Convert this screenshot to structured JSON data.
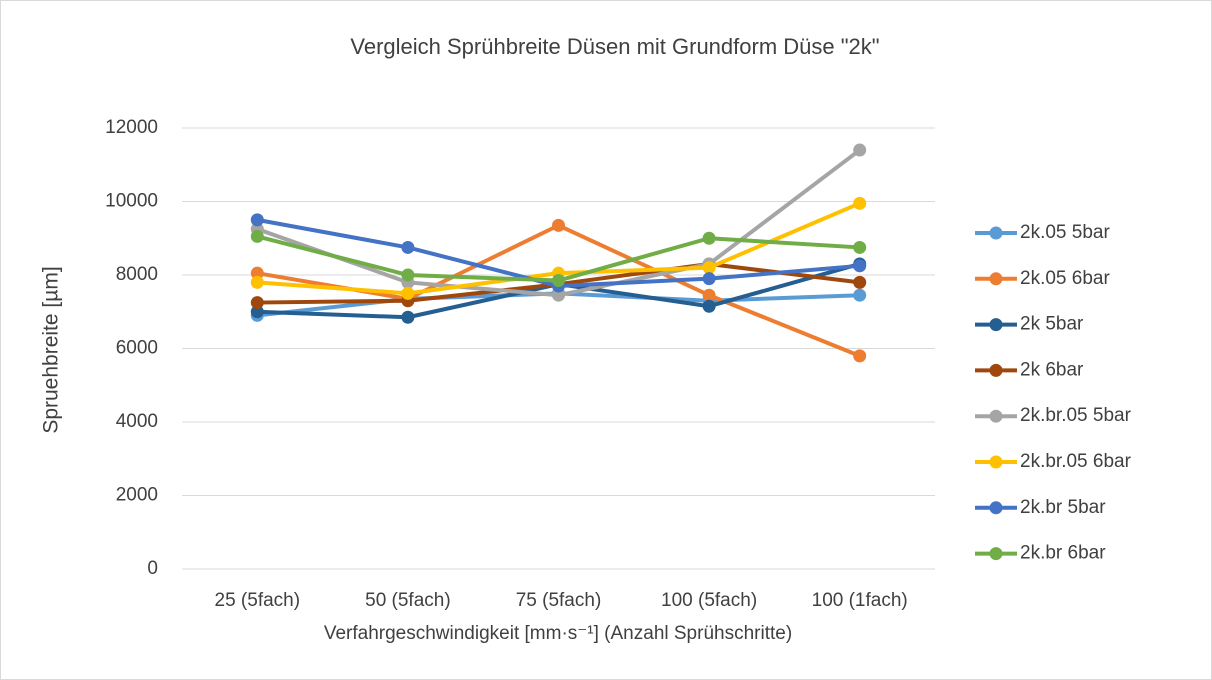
{
  "chart_data": {
    "type": "line",
    "title": "Vergleich Sprühbreite Düsen mit Grundform Düse \"2k\"",
    "x_label": "Verfahrgeschwindigkeit [mm·s⁻¹] (Anzahl Sprühschritte)",
    "y_label": "Spruehbreite [µm]",
    "categories": [
      "25 (5fach)",
      "50 (5fach)",
      "75 (5fach)",
      "100 (5fach)",
      "100 (1fach)"
    ],
    "series": [
      {
        "name": "2k.05 5bar",
        "color": "#5B9BD5",
        "values": [
          6900,
          7350,
          7500,
          7300,
          7450
        ]
      },
      {
        "name": "2k.05 6bar",
        "color": "#ED7D31",
        "values": [
          8050,
          7350,
          9350,
          7450,
          5800
        ]
      },
      {
        "name": "2k 5bar",
        "color": "#255E91",
        "values": [
          7000,
          6850,
          7750,
          7150,
          8300
        ]
      },
      {
        "name": "2k 6bar",
        "color": "#9E480E",
        "values": [
          7250,
          7300,
          7750,
          8300,
          7800
        ]
      },
      {
        "name": "2k.br.05 5bar",
        "color": "#A5A5A5",
        "values": [
          9250,
          7800,
          7450,
          8300,
          11400
        ]
      },
      {
        "name": "2k.br.05 6bar",
        "color": "#FFC000",
        "values": [
          7800,
          7500,
          8050,
          8200,
          9950
        ]
      },
      {
        "name": "2k.br 5bar",
        "color": "#4472C4",
        "values": [
          9500,
          8750,
          7700,
          7900,
          8250
        ]
      },
      {
        "name": "2k.br 6bar",
        "color": "#70AD47",
        "values": [
          9050,
          8000,
          7850,
          9000,
          8750
        ]
      }
    ],
    "ylim": [
      0,
      12000
    ],
    "yticks": [
      0,
      2000,
      4000,
      6000,
      8000,
      10000,
      12000
    ],
    "grid": true,
    "legend": "right"
  }
}
